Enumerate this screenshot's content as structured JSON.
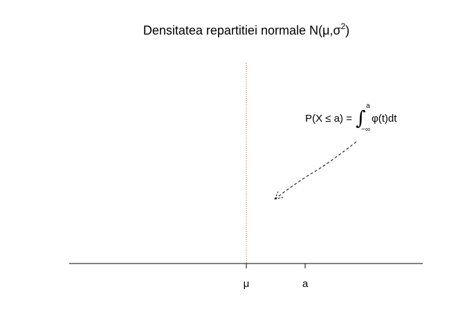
{
  "chart_data": {
    "type": "line",
    "title": "Densitatea repartitiei normale N(μ,σ",
    "title_superscript": "2",
    "title_close": ")",
    "xlabel": "",
    "ylabel": "",
    "x_ticks": [
      {
        "label": "μ",
        "value": 0
      },
      {
        "label": "a",
        "value": 1
      }
    ],
    "xlim": [
      -3,
      3
    ],
    "mean_line": {
      "x": 0,
      "style": "dotted",
      "color": "#a0522d"
    },
    "annotation": {
      "text_prefix": "P(X ≤ a) = ",
      "integral_sign": "∫",
      "upper_limit": "a",
      "lower_limit": "−∞",
      "integrand": "φ(t)dt",
      "arrow_style": "dashed"
    },
    "grid": false,
    "legend": "none"
  }
}
